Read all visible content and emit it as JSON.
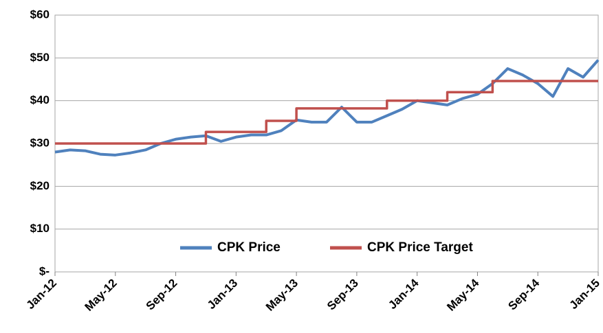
{
  "chart_data": {
    "type": "line",
    "x": [
      "2012-01",
      "2012-02",
      "2012-03",
      "2012-04",
      "2012-05",
      "2012-06",
      "2012-07",
      "2012-08",
      "2012-09",
      "2012-10",
      "2012-11",
      "2012-12",
      "2013-01",
      "2013-02",
      "2013-03",
      "2013-04",
      "2013-05",
      "2013-06",
      "2013-07",
      "2013-08",
      "2013-09",
      "2013-10",
      "2013-11",
      "2013-12",
      "2014-01",
      "2014-02",
      "2014-03",
      "2014-04",
      "2014-05",
      "2014-06",
      "2014-07",
      "2014-08",
      "2014-09",
      "2014-10",
      "2014-11",
      "2014-12",
      "2015-01"
    ],
    "series": [
      {
        "name": "CPK Price",
        "color": "#4f81bd",
        "values": [
          28,
          28.5,
          28.3,
          27.5,
          27.3,
          27.8,
          28.5,
          30,
          31,
          31.5,
          31.8,
          30.5,
          31.5,
          32,
          32,
          33,
          35.5,
          35,
          35,
          38.5,
          35,
          35,
          36.5,
          38,
          40,
          39.5,
          39,
          40.5,
          41.5,
          44,
          47.5,
          46,
          44,
          41,
          47.5,
          45.5,
          49.5
        ]
      },
      {
        "name": "CPK Price Target",
        "color": "#c0504d",
        "step": "after",
        "values": [
          30,
          30,
          30,
          30,
          30,
          30,
          30,
          30,
          30,
          30,
          32.7,
          32.7,
          32.7,
          32.7,
          35.3,
          35.3,
          38.2,
          38.2,
          38.2,
          38.2,
          38.2,
          38.2,
          40,
          40,
          40,
          40,
          42,
          42,
          42,
          44.6,
          44.6,
          44.6,
          44.6,
          44.6,
          44.6,
          44.6,
          44.6
        ]
      }
    ],
    "ylim": [
      0,
      60
    ],
    "yticks": [
      {
        "value": 0,
        "label": "$-"
      },
      {
        "value": 10,
        "label": "$10"
      },
      {
        "value": 20,
        "label": "$20"
      },
      {
        "value": 30,
        "label": "$30"
      },
      {
        "value": 40,
        "label": "$40"
      },
      {
        "value": 50,
        "label": "$50"
      },
      {
        "value": 60,
        "label": "$60"
      }
    ],
    "xticks": [
      {
        "value": "2012-01",
        "label": "Jan-12"
      },
      {
        "value": "2012-05",
        "label": "May-12"
      },
      {
        "value": "2012-09",
        "label": "Sep-12"
      },
      {
        "value": "2013-01",
        "label": "Jan-13"
      },
      {
        "value": "2013-05",
        "label": "May-13"
      },
      {
        "value": "2013-09",
        "label": "Sep-13"
      },
      {
        "value": "2014-01",
        "label": "Jan-14"
      },
      {
        "value": "2014-05",
        "label": "May-14"
      },
      {
        "value": "2014-09",
        "label": "Sep-14"
      },
      {
        "value": "2015-01",
        "label": "Jan-15"
      }
    ],
    "grid": true,
    "legend": "bottom"
  }
}
